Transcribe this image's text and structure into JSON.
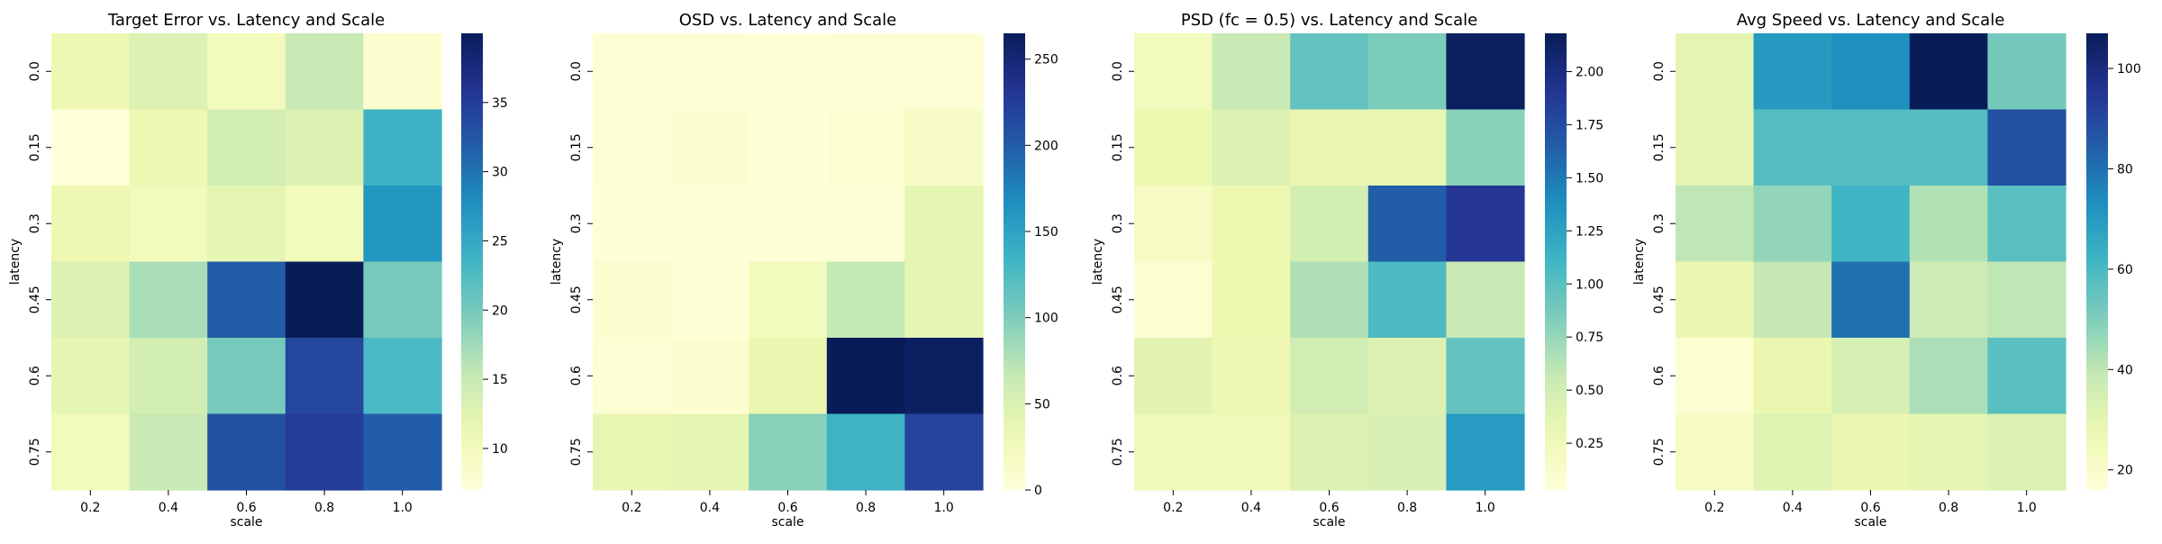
{
  "chart_data": [
    {
      "type": "heatmap",
      "title": "Target Error vs. Latency and Scale",
      "xlabel": "scale",
      "ylabel": "latency",
      "x_categories": [
        "0.2",
        "0.4",
        "0.6",
        "0.8",
        "1.0"
      ],
      "y_categories": [
        "0.0",
        "0.15",
        "0.3",
        "0.45",
        "0.6",
        "0.75"
      ],
      "values": [
        [
          11,
          13,
          10,
          15,
          8
        ],
        [
          7,
          11,
          14,
          13,
          24
        ],
        [
          11,
          10,
          12,
          10,
          27
        ],
        [
          13,
          17,
          32,
          40,
          20
        ],
        [
          12,
          14,
          20,
          34,
          23
        ],
        [
          10,
          15,
          33,
          35,
          32
        ]
      ],
      "colorbar": {
        "min": 7,
        "max": 40,
        "ticks": [
          10,
          15,
          20,
          25,
          30,
          35
        ]
      },
      "colormap": "YlGnBu"
    },
    {
      "type": "heatmap",
      "title": "OSD vs. Latency and Scale",
      "xlabel": "scale",
      "ylabel": "latency",
      "x_categories": [
        "0.2",
        "0.4",
        "0.6",
        "0.8",
        "1.0"
      ],
      "y_categories": [
        "0.0",
        "0.15",
        "0.3",
        "0.45",
        "0.6",
        "0.75"
      ],
      "values": [
        [
          3,
          3,
          2,
          3,
          4
        ],
        [
          3,
          10,
          2,
          6,
          15
        ],
        [
          2,
          2,
          2,
          4,
          40
        ],
        [
          8,
          2,
          23,
          68,
          40
        ],
        [
          5,
          8,
          35,
          265,
          260
        ],
        [
          38,
          40,
          95,
          135,
          220
        ]
      ],
      "colorbar": {
        "min": 0,
        "max": 265,
        "ticks": [
          0,
          50,
          100,
          150,
          200,
          250
        ]
      },
      "colormap": "YlGnBu"
    },
    {
      "type": "heatmap",
      "title": "PSD (fc = 0.5) vs. Latency and Scale",
      "xlabel": "scale",
      "ylabel": "latency",
      "x_categories": [
        "0.2",
        "0.4",
        "0.6",
        "0.8",
        "1.0"
      ],
      "y_categories": [
        "0.0",
        "0.15",
        "0.3",
        "0.45",
        "0.6",
        "0.75"
      ],
      "values": [
        [
          0.22,
          0.55,
          0.95,
          0.85,
          2.15
        ],
        [
          0.3,
          0.42,
          0.33,
          0.33,
          0.8
        ],
        [
          0.18,
          0.3,
          0.48,
          1.65,
          1.9
        ],
        [
          0.08,
          0.3,
          0.65,
          1.05,
          0.55
        ],
        [
          0.38,
          0.28,
          0.5,
          0.42,
          0.95
        ],
        [
          0.25,
          0.25,
          0.42,
          0.45,
          1.3
        ]
      ],
      "colorbar": {
        "min": 0.03,
        "max": 2.18,
        "ticks": [
          0.25,
          0.5,
          0.75,
          1.0,
          1.25,
          1.5,
          1.75,
          2.0
        ],
        "tick_labels": [
          "0.25",
          "0.50",
          "0.75",
          "1.00",
          "1.25",
          "1.50",
          "1.75",
          "2.00"
        ]
      },
      "colormap": "YlGnBu"
    },
    {
      "type": "heatmap",
      "title": "Avg Speed vs. Latency and Scale",
      "xlabel": "scale",
      "ylabel": "latency",
      "x_categories": [
        "0.2",
        "0.4",
        "0.6",
        "0.8",
        "1.0"
      ],
      "y_categories": [
        "0.0",
        "0.15",
        "0.3",
        "0.45",
        "0.6",
        "0.75"
      ],
      "values": [
        [
          30,
          70,
          73,
          107,
          52
        ],
        [
          30,
          58,
          58,
          58,
          88
        ],
        [
          40,
          47,
          62,
          42,
          57
        ],
        [
          28,
          39,
          80,
          37,
          40
        ],
        [
          18,
          28,
          35,
          43,
          57
        ],
        [
          22,
          32,
          28,
          30,
          33
        ]
      ],
      "colorbar": {
        "min": 16,
        "max": 107,
        "ticks": [
          20,
          40,
          60,
          80,
          100
        ]
      },
      "colormap": "YlGnBu"
    }
  ]
}
